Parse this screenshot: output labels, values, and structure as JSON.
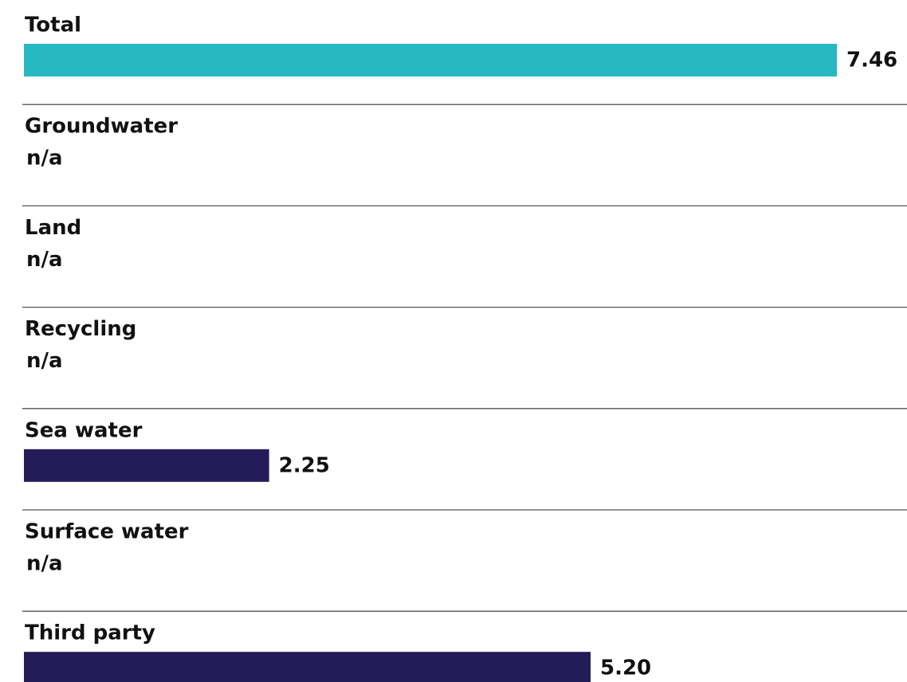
{
  "chart_data": {
    "type": "bar",
    "orientation": "horizontal",
    "categories": [
      "Total",
      "Groundwater",
      "Land",
      "Recycling",
      "Sea water",
      "Surface water",
      "Third party"
    ],
    "values": [
      7.46,
      null,
      null,
      null,
      2.25,
      null,
      5.2
    ],
    "value_labels": [
      "7.46",
      "n/a",
      "n/a",
      "n/a",
      "2.25",
      "n/a",
      "5.20"
    ],
    "colors": [
      "#27b8c3",
      "#241b59",
      "#241b59",
      "#241b59",
      "#241b59",
      "#241b59",
      "#241b59"
    ],
    "xlim": [
      0,
      7.46
    ]
  }
}
